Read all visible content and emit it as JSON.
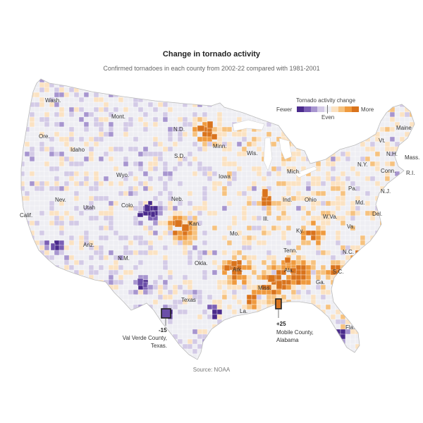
{
  "header": {
    "title": "Change in tornado activity",
    "subtitle": "Confirmed tornadoes in each county from 2002-22 compared with 1981-2001"
  },
  "legend": {
    "title": "Tornado activity change",
    "fewer_label": "Fewer",
    "more_label": "More",
    "even_label": "Even",
    "colors": [
      "#4a2a8c",
      "#7b5fb5",
      "#a795cf",
      "#d3cae6",
      "#eeeef3",
      "#fbe2c2",
      "#f6c27f",
      "#ef9a3e",
      "#d9731c"
    ]
  },
  "state_labels": [
    {
      "text": "Wash."
    },
    {
      "text": "Mont."
    },
    {
      "text": "N.D."
    },
    {
      "text": "Minn."
    },
    {
      "text": "Ore."
    },
    {
      "text": "Idaho"
    },
    {
      "text": "S.D."
    },
    {
      "text": "Wis."
    },
    {
      "text": "Mich."
    },
    {
      "text": "Maine"
    },
    {
      "text": "Vt."
    },
    {
      "text": "N.H."
    },
    {
      "text": "Mass."
    },
    {
      "text": "N.Y."
    },
    {
      "text": "Conn."
    },
    {
      "text": "R.I."
    },
    {
      "text": "Wyo."
    },
    {
      "text": "Iowa"
    },
    {
      "text": "Neb."
    },
    {
      "text": "Nev."
    },
    {
      "text": "Utah"
    },
    {
      "text": "Calif."
    },
    {
      "text": "Colo."
    },
    {
      "text": "Kan."
    },
    {
      "text": "Ill."
    },
    {
      "text": "Ind."
    },
    {
      "text": "Ohio"
    },
    {
      "text": "Pa."
    },
    {
      "text": "N.J."
    },
    {
      "text": "Md."
    },
    {
      "text": "Del."
    },
    {
      "text": "W.Va."
    },
    {
      "text": "Va."
    },
    {
      "text": "Ky."
    },
    {
      "text": "Mo."
    },
    {
      "text": "Ariz."
    },
    {
      "text": "N.M."
    },
    {
      "text": "Okla."
    },
    {
      "text": "Tenn."
    },
    {
      "text": "N.C."
    },
    {
      "text": "Ark."
    },
    {
      "text": "Ala."
    },
    {
      "text": "S.C."
    },
    {
      "text": "Ga."
    },
    {
      "text": "Miss."
    },
    {
      "text": "Texas"
    },
    {
      "text": "La."
    },
    {
      "text": "Fla."
    }
  ],
  "callouts": [
    {
      "value": "-15",
      "line1": "Val Verde County,",
      "line2": "Texas."
    },
    {
      "value": "+25",
      "line1": "Mobile County,",
      "line2": "Alabama"
    }
  ],
  "source": "Source: NOAA"
}
